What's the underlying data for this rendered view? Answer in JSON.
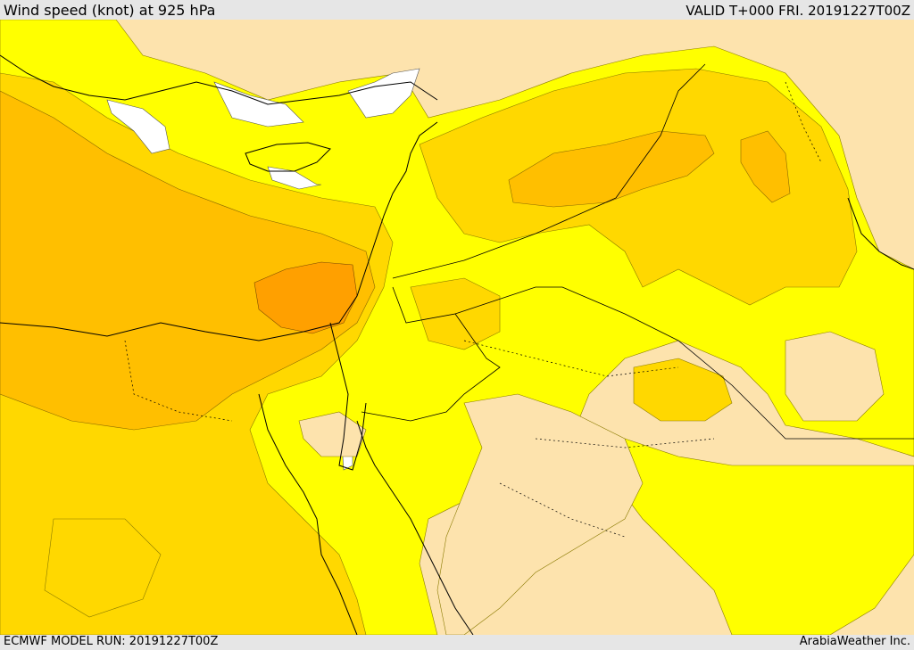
{
  "header": {
    "title": "Wind speed (knot) at 925 hPa",
    "valid": "VALID T+000 FRI. 20191227T00Z"
  },
  "footer": {
    "model_run": "ECMWF MODEL RUN: 20191227T00Z",
    "credit": "ArabiaWeather Inc."
  },
  "palette": {
    "calm": "#ffffff",
    "light": "#fde3ad",
    "moderate": "#ffff00",
    "fresh": "#ffd800",
    "strong": "#ffbf00",
    "very_strong": "#ffa000",
    "coastline": "#000000",
    "border": "#000000"
  }
}
